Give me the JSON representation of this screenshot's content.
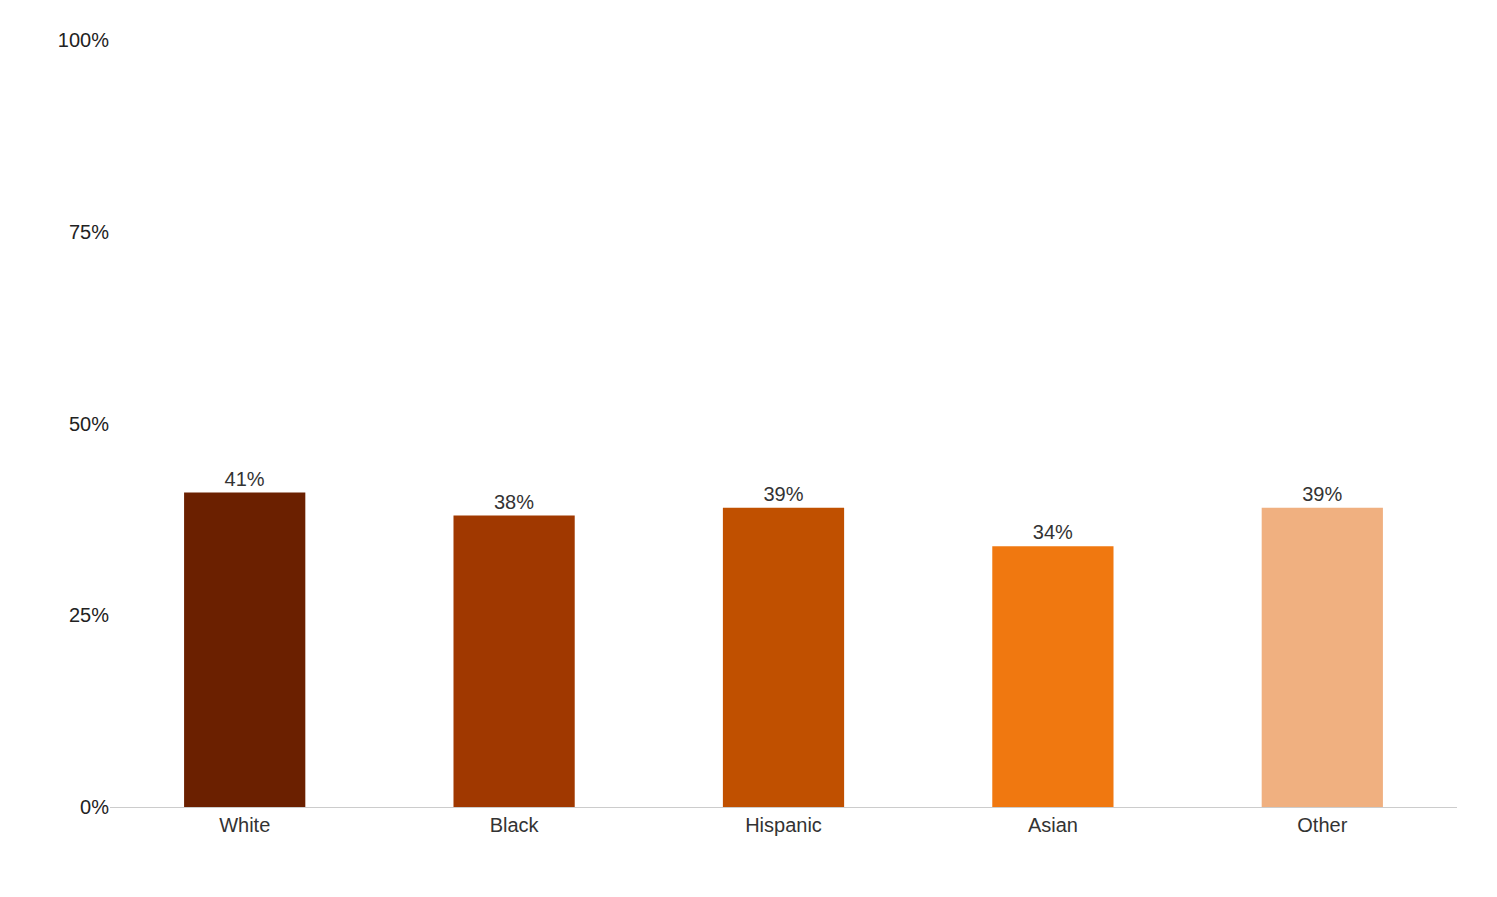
{
  "chart_data": {
    "type": "bar",
    "categories": [
      "White",
      "Black",
      "Hispanic",
      "Asian",
      "Other"
    ],
    "values": [
      41,
      38,
      39,
      34,
      39
    ],
    "value_labels": [
      "41%",
      "38%",
      "39%",
      "34%",
      "39%"
    ],
    "data_labels": true,
    "colors": [
      "#6B2000",
      "#A03800",
      "#C05000",
      "#F07810",
      "#F0B080"
    ],
    "ylim": [
      0,
      100
    ],
    "yticks": [
      {
        "value": 0,
        "label": "0%"
      },
      {
        "value": 25,
        "label": "25%"
      },
      {
        "value": 50,
        "label": "50%"
      },
      {
        "value": 75,
        "label": "75%"
      },
      {
        "value": 100,
        "label": "100%"
      }
    ],
    "grid": false
  }
}
